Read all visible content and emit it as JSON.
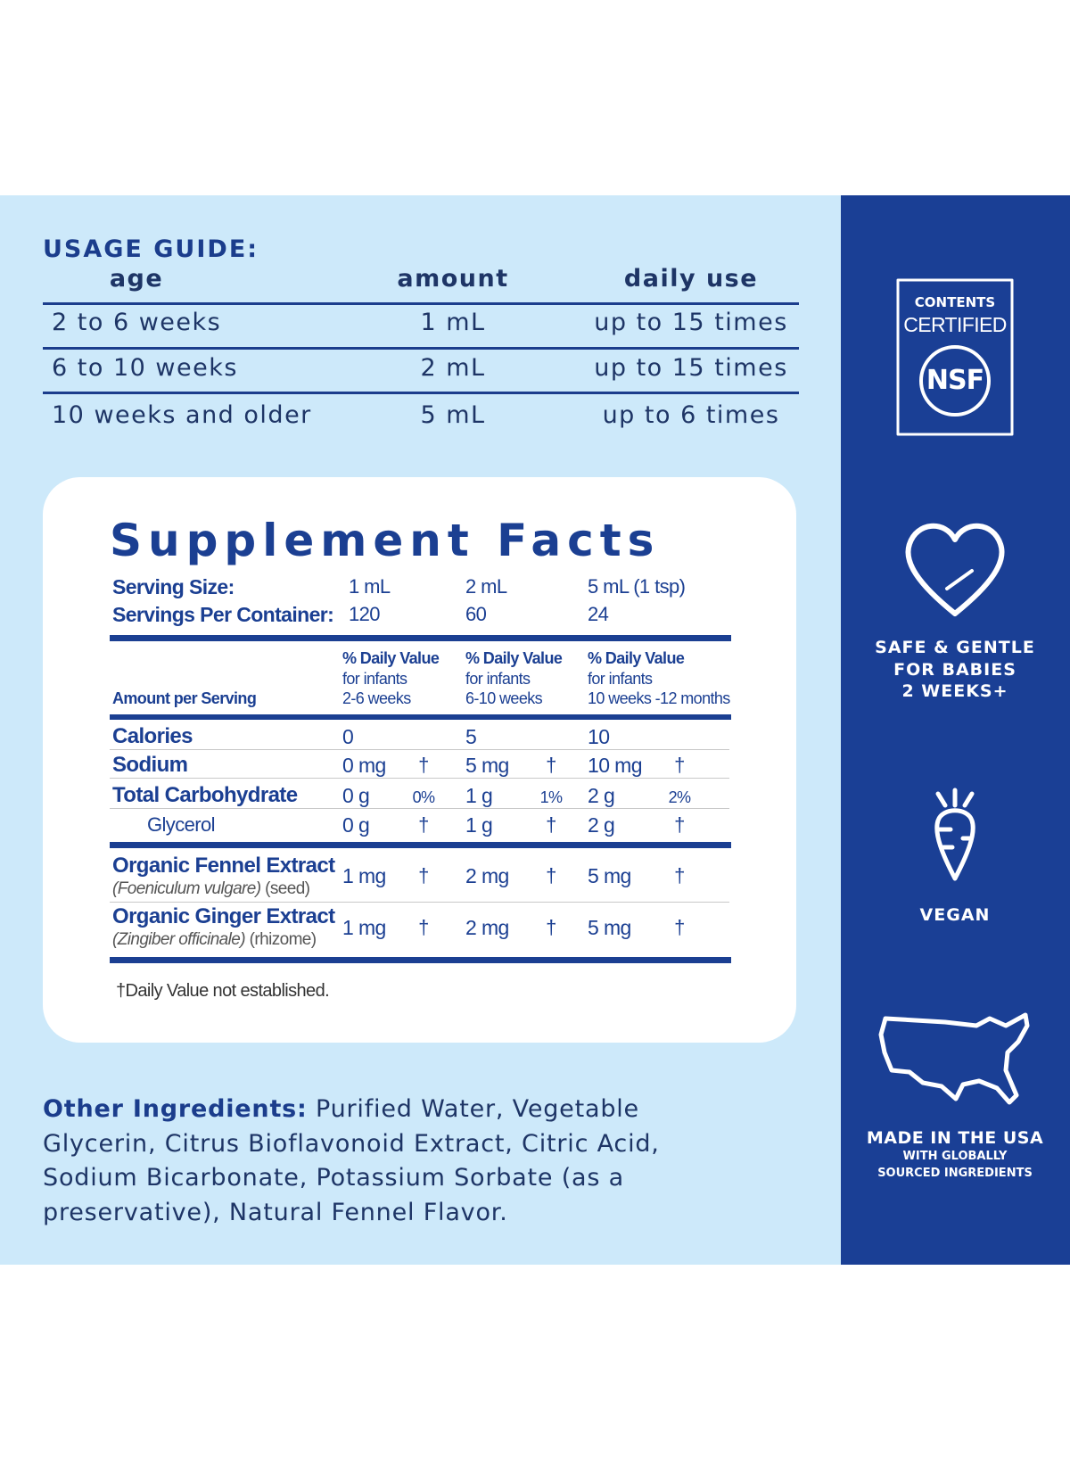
{
  "usage_guide": {
    "title": "USAGE GUIDE:",
    "headers": [
      "age",
      "amount",
      "daily use"
    ],
    "rows": [
      [
        "2 to 6 weeks",
        "1 mL",
        "up to 15 times"
      ],
      [
        "6 to 10 weeks",
        "2 mL",
        "up to 15 times"
      ],
      [
        "10 weeks and older",
        "5 mL",
        "up to 6 times"
      ]
    ]
  },
  "supplement_facts": {
    "title": "Supplement Facts",
    "serving_size": {
      "label": "Serving Size:",
      "values": [
        "1 mL",
        "2 mL",
        "5 mL (1 tsp)"
      ]
    },
    "servings_per_container": {
      "label": "Servings Per Container:",
      "values": [
        "120",
        "60",
        "24"
      ]
    },
    "amount_header": "Amount per Serving",
    "dv_headers": [
      {
        "title": "% Daily Value",
        "line1": "for infants",
        "line2": "2-6 weeks"
      },
      {
        "title": "% Daily Value",
        "line1": "for infants",
        "line2": "6-10 weeks"
      },
      {
        "title": "% Daily Value",
        "line1": "for infants",
        "line2": "10 weeks -12 months"
      }
    ],
    "nutrients": [
      {
        "name": "Calories",
        "cells": [
          {
            "amount": "0"
          },
          {
            "amount": "5"
          },
          {
            "amount": "10"
          }
        ]
      },
      {
        "name": "Sodium",
        "cells": [
          {
            "amount": "0 mg",
            "dv": "†"
          },
          {
            "amount": "5 mg",
            "dv": "†"
          },
          {
            "amount": "10 mg",
            "dv": "†"
          }
        ]
      },
      {
        "name": "Total Carbohydrate",
        "cells": [
          {
            "amount": "0 g",
            "dv": "0%"
          },
          {
            "amount": "1 g",
            "dv": "1%"
          },
          {
            "amount": "2 g",
            "dv": "2%"
          }
        ],
        "includes": [
          {
            "name": "Glycerol",
            "cells": [
              {
                "amount": "0 g",
                "dv": "†"
              },
              {
                "amount": "1 g",
                "dv": "†"
              },
              {
                "amount": "2 g",
                "dv": "†"
              }
            ]
          }
        ]
      }
    ],
    "extracts": [
      {
        "name": "Organic Fennel Extract",
        "latin": "(Foeniculum vulgare)",
        "part": "(seed)",
        "cells": [
          {
            "amount": "1 mg",
            "dv": "†"
          },
          {
            "amount": "2 mg",
            "dv": "†"
          },
          {
            "amount": "5 mg",
            "dv": "†"
          }
        ]
      },
      {
        "name": "Organic Ginger Extract",
        "latin": "(Zingiber officinale)",
        "part": "(rhizome)",
        "cells": [
          {
            "amount": "1 mg",
            "dv": "†"
          },
          {
            "amount": "2 mg",
            "dv": "†"
          },
          {
            "amount": "5 mg",
            "dv": "†"
          }
        ]
      }
    ],
    "footnote": "†Daily Value not established."
  },
  "other_ingredients": {
    "label": "Other Ingredients:",
    "text": "Purified Water, Vegetable Glycerin, Citrus Bioflavonoid Extract, Citric Acid, Sodium Bicarbonate, Potassium Sorbate (as a preservative), Natural Fennel Flavor."
  },
  "badges": {
    "nsf": {
      "line1": "CONTENTS",
      "line2": "CERTIFIED",
      "logo": "NSF"
    },
    "safe": [
      "SAFE & GENTLE",
      "FOR BABIES",
      "2 WEEKS+"
    ],
    "vegan": "VEGAN",
    "usa": {
      "title": "MADE IN THE USA",
      "line1": "WITH GLOBALLY",
      "line2": "SOURCED INGREDIENTS"
    }
  }
}
